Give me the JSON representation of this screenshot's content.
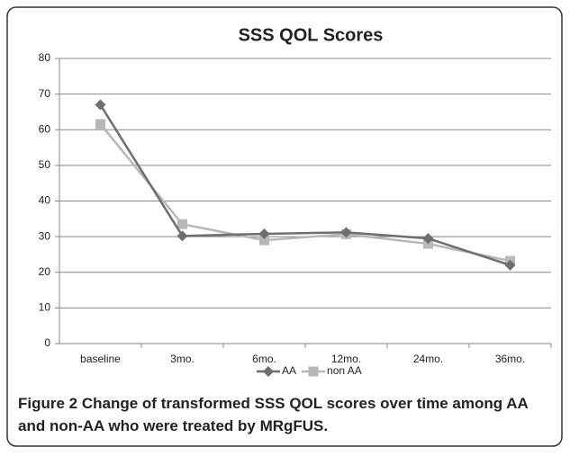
{
  "chart_data": {
    "type": "line",
    "title": "SSS QOL Scores",
    "categories": [
      "baseline",
      "3mo.",
      "6mo.",
      "12mo.",
      "24mo.",
      "36mo."
    ],
    "series": [
      {
        "name": "AA",
        "color": "#6e6e6e",
        "marker": "diamond",
        "values": [
          67,
          30.2,
          30.8,
          31.2,
          29.5,
          22
        ]
      },
      {
        "name": "non AA",
        "color": "#b8b8b8",
        "marker": "square",
        "values": [
          61.6,
          33.5,
          29,
          30.7,
          28,
          23.2
        ]
      }
    ],
    "ylim": [
      0,
      80
    ],
    "yticks": [
      0,
      10,
      20,
      30,
      40,
      50,
      60,
      70,
      80
    ],
    "grid": true,
    "legend": "bottom"
  },
  "caption": {
    "label": "Figure 2",
    "text": "Change of transformed SSS QOL scores over time among AA and non-AA who were treated by MRgFUS."
  }
}
